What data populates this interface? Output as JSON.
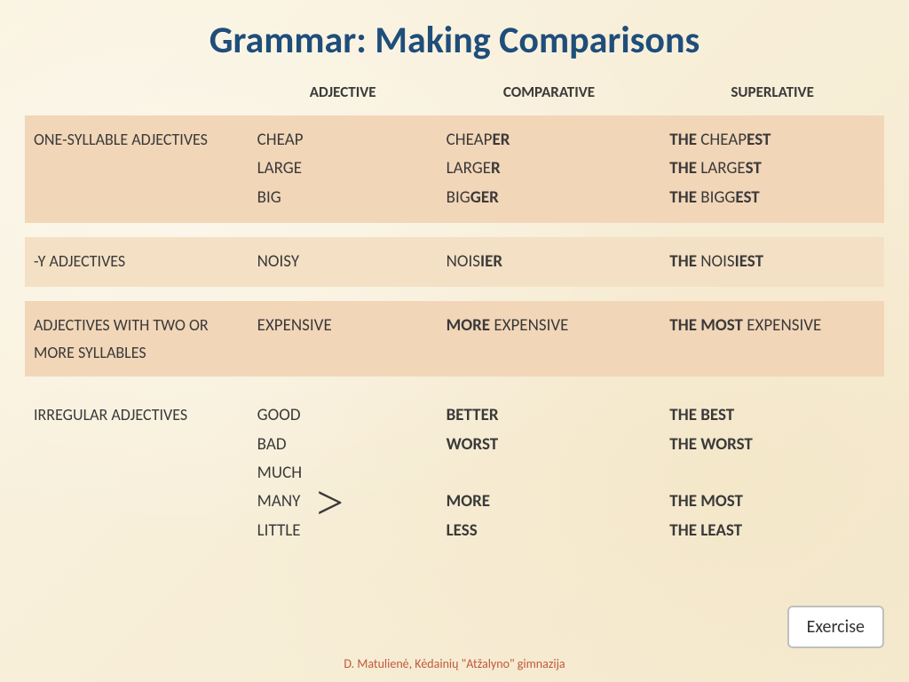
{
  "title": "Grammar: Making Comparisons",
  "headers": {
    "col1": "",
    "col2": "ADJECTIVE",
    "col3": "COMPARATIVE",
    "col4": "SUPERLATIVE"
  },
  "rows": [
    {
      "band": "band",
      "category": "ONE-SYLLABLE ADJECTIVES",
      "adjective_html": "CHEAP<br>LARGE<br>BIG",
      "comparative_html": "CHEAP<b>ER</b><br>LARGE<b>R</b><br>BIG<b>GER</b>",
      "superlative_html": "<b>THE</b> CHEAP<b>EST</b><br><b>THE</b> LARGE<b>ST</b><br><b>THE</b> BIGG<b>EST</b>"
    },
    {
      "band": "alt",
      "category": "-Y ADJECTIVES",
      "adjective_html": "NOISY",
      "comparative_html": "NOIS<b>IER</b>",
      "superlative_html": "<b>THE</b> NOIS<b>IEST</b>"
    },
    {
      "band": "band",
      "category": "ADJECTIVES WITH TWO OR MORE SYLLABLES",
      "adjective_html": "EXPENSIVE",
      "comparative_html": "<b>MORE</b> EXPENSIVE",
      "superlative_html": "<b>THE MOST</b> EXPENSIVE"
    },
    {
      "band": "plain",
      "category": "IRREGULAR ADJECTIVES",
      "adjective_html": "GOOD<br>BAD<br>MUCH<br>MANY<span class=\"gt\">&gt;</span><br>LITTLE",
      "comparative_html": "<b>BETTER</b><br><b>WORST</b><br><br><b>MORE</b><br><b>LESS</b>",
      "superlative_html": "<b>THE BEST</b><br><b>THE WORST</b><br><br><b>THE MOST</b><br><b>THE LEAST</b>"
    }
  ],
  "button_label": "Exercise",
  "footer": "D. Matulienė, Kėdainių \"Atžalyno\" gimnazija",
  "colors": {
    "title": "#1f4e79",
    "band": "#f2d6b8",
    "alt": "#f4e0c4",
    "background": "#f8f0dc",
    "footer": "#c05838"
  },
  "layout": {
    "col_widths_pct": [
      26,
      22,
      26,
      26
    ],
    "title_fontsize_pt": 32,
    "header_fontsize_pt": 13,
    "cell_fontsize_pt": 14
  }
}
